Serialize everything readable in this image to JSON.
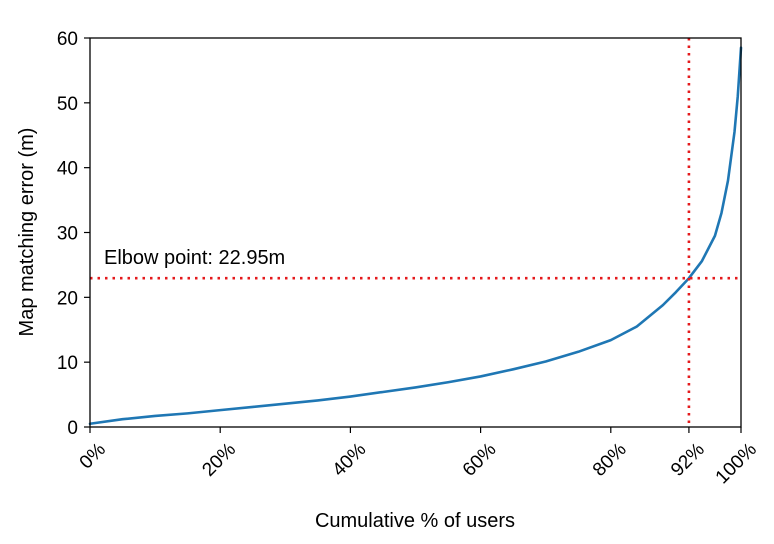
{
  "chart_data": {
    "type": "line",
    "title": "",
    "xlabel": "Cumulative % of users",
    "ylabel": "Map matching error (m)",
    "xlim": [
      0,
      100
    ],
    "ylim": [
      0,
      60
    ],
    "x_ticks": [
      0,
      20,
      40,
      60,
      80,
      92,
      100
    ],
    "x_tick_labels": [
      "0%",
      "20%",
      "40%",
      "60%",
      "80%",
      "92%",
      "100%"
    ],
    "y_ticks": [
      0,
      10,
      20,
      30,
      40,
      50,
      60
    ],
    "y_tick_labels": [
      "0",
      "10",
      "20",
      "30",
      "40",
      "50",
      "60"
    ],
    "grid": false,
    "series": [
      {
        "name": "Map matching error",
        "color": "#1f77b4",
        "x": [
          0,
          5,
          10,
          15,
          20,
          25,
          30,
          35,
          40,
          45,
          50,
          55,
          60,
          65,
          70,
          75,
          80,
          84,
          88,
          90,
          92,
          94,
          96,
          97,
          98,
          99,
          99.5,
          100
        ],
        "y": [
          0.5,
          1.2,
          1.7,
          2.1,
          2.6,
          3.1,
          3.6,
          4.1,
          4.7,
          5.4,
          6.1,
          6.9,
          7.8,
          8.9,
          10.1,
          11.6,
          13.4,
          15.5,
          18.8,
          20.8,
          22.95,
          25.6,
          29.5,
          33.0,
          38.0,
          45.5,
          51.0,
          58.5
        ]
      }
    ],
    "annotations": {
      "elbow_label": "Elbow point: 22.95m",
      "elbow_x": 92,
      "elbow_y": 22.95,
      "reference_color": "#e41a1c"
    }
  }
}
